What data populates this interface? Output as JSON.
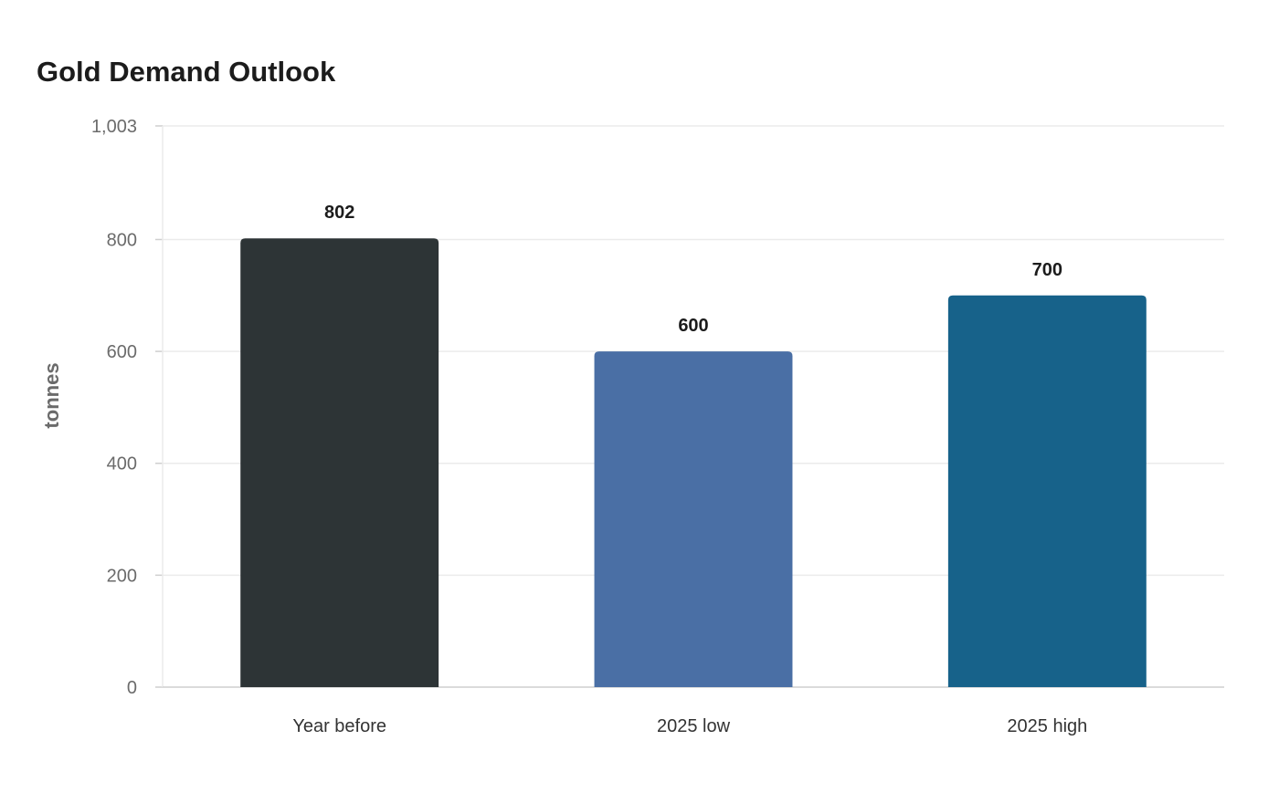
{
  "chart_data": {
    "type": "bar",
    "title": "Gold Demand Outlook",
    "xlabel": "",
    "ylabel": "tonnes",
    "categories": [
      "Year before",
      "2025 low",
      "2025 high"
    ],
    "values": [
      802,
      600,
      700
    ],
    "data_labels": [
      "802",
      "600",
      "700"
    ],
    "bar_colors": [
      "#2d3436",
      "#4a6fa5",
      "#17628a"
    ],
    "ylim": [
      0,
      1003
    ],
    "yticks": [
      0,
      200,
      400,
      600,
      800,
      1003
    ],
    "ytick_labels": [
      "0",
      "200",
      "400",
      "600",
      "800",
      "1,003"
    ],
    "grid": true,
    "legend": "none"
  },
  "colors": {
    "grid": "#ebebeb",
    "axis": "#cfcfcf"
  }
}
